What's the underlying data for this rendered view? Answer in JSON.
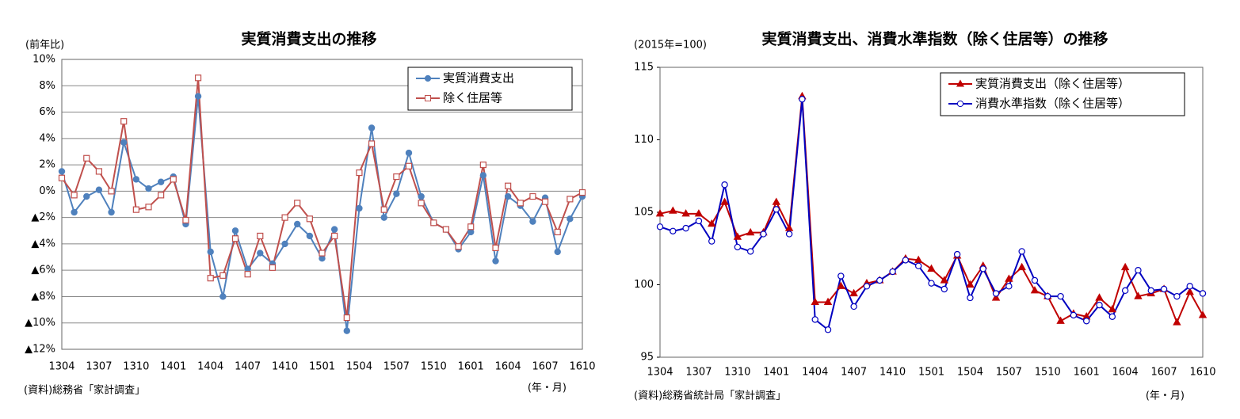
{
  "chart_data": [
    {
      "type": "line",
      "title": "実質消費支出の推移",
      "y_label": "(前年比)",
      "x_label": "(年・月)",
      "source": "(資料)総務省「家計調査」",
      "categories": [
        "1304",
        null,
        null,
        "1307",
        null,
        null,
        "1310",
        null,
        null,
        "1401",
        null,
        null,
        "1404",
        null,
        null,
        "1407",
        null,
        null,
        "1410",
        null,
        null,
        "1501",
        null,
        null,
        "1504",
        null,
        null,
        "1507",
        null,
        null,
        "1510",
        null,
        null,
        "1601",
        null,
        null,
        "1604",
        null,
        null,
        "1607",
        null,
        null,
        "1610"
      ],
      "series": [
        {
          "name": "実質消費支出",
          "color": "#4f81bd",
          "marker": "circle",
          "marker_filled": true,
          "values": [
            1.5,
            -1.6,
            -0.4,
            0.1,
            -1.6,
            3.7,
            0.9,
            0.2,
            0.7,
            1.1,
            -2.5,
            7.2,
            -4.6,
            -8.0,
            -3.0,
            -5.9,
            -4.7,
            -5.5,
            -4.0,
            -2.5,
            -3.4,
            -5.1,
            -2.9,
            -10.6,
            -1.3,
            4.8,
            -2.0,
            -0.2,
            2.9,
            -0.4,
            -2.4,
            -2.9,
            -4.4,
            -3.1,
            1.2,
            -5.3,
            -0.4,
            -1.1,
            -2.3,
            -0.5,
            -4.6,
            -2.1,
            -0.4
          ]
        },
        {
          "name": "除く住居等",
          "color": "#c0504d",
          "marker": "square",
          "marker_filled": false,
          "values": [
            1.0,
            -0.3,
            2.5,
            1.5,
            0.0,
            5.3,
            -1.4,
            -1.2,
            -0.3,
            0.9,
            -2.2,
            8.6,
            -6.6,
            -6.4,
            -3.6,
            -6.3,
            -3.4,
            -5.8,
            -2.0,
            -0.9,
            -2.1,
            -4.7,
            -3.4,
            -9.6,
            1.4,
            3.6,
            -1.4,
            1.1,
            1.9,
            -0.9,
            -2.4,
            -2.9,
            -4.2,
            -2.7,
            2.0,
            -4.3,
            0.4,
            -0.9,
            -0.4,
            -0.8,
            -3.1,
            -0.6,
            -0.1
          ]
        }
      ],
      "ylim": [
        -12,
        10
      ],
      "yticks": [
        {
          "value": 10,
          "label": "10%"
        },
        {
          "value": 8,
          "label": "8%"
        },
        {
          "value": 6,
          "label": "6%"
        },
        {
          "value": 4,
          "label": "4%"
        },
        {
          "value": 2,
          "label": "2%"
        },
        {
          "value": 0,
          "label": "0%"
        },
        {
          "value": -2,
          "label": "▲2%"
        },
        {
          "value": -4,
          "label": "▲4%"
        },
        {
          "value": -6,
          "label": "▲6%"
        },
        {
          "value": -8,
          "label": "▲8%"
        },
        {
          "value": -10,
          "label": "▲10%"
        },
        {
          "value": -12,
          "label": "▲12%"
        }
      ],
      "grid": true,
      "legend": "upper right"
    },
    {
      "type": "line",
      "title": "実質消費支出、消費水準指数（除く住居等）の推移",
      "y_label": "(2015年=100)",
      "x_label": "(年・月)",
      "source": "(資料)総務省統計局「家計調査」",
      "categories": [
        "1304",
        null,
        null,
        "1307",
        null,
        null,
        "1310",
        null,
        null,
        "1401",
        null,
        null,
        "1404",
        null,
        null,
        "1407",
        null,
        null,
        "1410",
        null,
        null,
        "1501",
        null,
        null,
        "1504",
        null,
        null,
        "1507",
        null,
        null,
        "1510",
        null,
        null,
        "1601",
        null,
        null,
        "1604",
        null,
        null,
        "1607",
        null,
        null,
        "1610"
      ],
      "series": [
        {
          "name": "実質消費支出（除く住居等）",
          "color": "#c00000",
          "marker": "triangle",
          "marker_filled": true,
          "values": [
            104.9,
            105.1,
            104.9,
            104.9,
            104.2,
            105.7,
            103.3,
            103.6,
            103.6,
            105.7,
            103.9,
            113.0,
            98.8,
            98.8,
            99.9,
            99.4,
            100.1,
            100.3,
            100.9,
            101.8,
            101.7,
            101.1,
            100.3,
            102.0,
            100.0,
            101.3,
            99.1,
            100.4,
            101.2,
            99.6,
            99.2,
            97.5,
            98.0,
            97.8,
            99.1,
            98.3,
            101.2,
            99.2,
            99.4,
            99.7,
            97.4,
            99.5,
            97.9
          ]
        },
        {
          "name": "消費水準指数（除く住居等）",
          "color": "#0000c0",
          "marker": "circle",
          "marker_filled": false,
          "values": [
            104.0,
            103.7,
            103.9,
            104.4,
            103.0,
            106.9,
            102.6,
            102.3,
            103.5,
            105.2,
            103.5,
            112.8,
            97.6,
            96.9,
            100.6,
            98.5,
            99.9,
            100.3,
            100.9,
            101.7,
            101.3,
            100.1,
            99.7,
            102.1,
            99.1,
            101.1,
            99.4,
            99.9,
            102.3,
            100.3,
            99.2,
            99.2,
            97.9,
            97.5,
            98.6,
            97.8,
            99.6,
            101.0,
            99.6,
            99.7,
            99.2,
            99.9,
            99.4
          ]
        }
      ],
      "ylim": [
        95,
        115
      ],
      "yticks": [
        95,
        100,
        105,
        110,
        115
      ],
      "grid": false,
      "legend": "upper right"
    }
  ]
}
